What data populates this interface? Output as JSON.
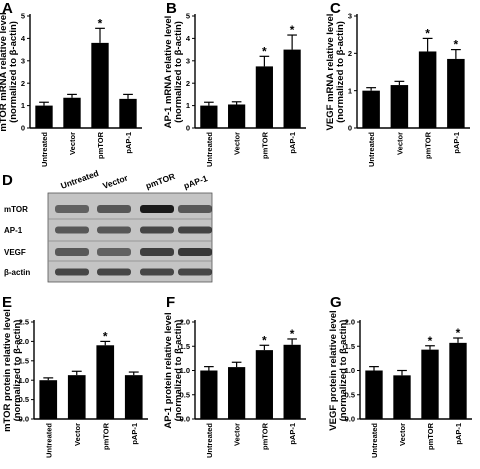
{
  "chart_data": [
    {
      "panel": "A",
      "type": "bar",
      "ylabel_line1": "mTOR mRNA relative level",
      "ylabel_line2": "(normalized to β-actin)",
      "categories": [
        "Untreated",
        "Vector",
        "pmTOR",
        "pAP-1"
      ],
      "values": [
        1.0,
        1.35,
        3.8,
        1.3
      ],
      "errors": [
        0.15,
        0.15,
        0.65,
        0.2
      ],
      "significant": [
        false,
        false,
        true,
        false
      ],
      "ylim": [
        0,
        5
      ],
      "yticks": [
        0,
        1,
        2,
        3,
        4,
        5
      ],
      "ytick_labels": [
        "0",
        "1",
        "2",
        "3",
        "4",
        "5"
      ]
    },
    {
      "panel": "B",
      "type": "bar",
      "ylabel_line1": "AP-1 mRNA relative level",
      "ylabel_line2": "(normalized to β-actin)",
      "categories": [
        "Untreated",
        "Vector",
        "pmTOR",
        "pAP-1"
      ],
      "values": [
        1.0,
        1.05,
        2.75,
        3.5
      ],
      "errors": [
        0.15,
        0.12,
        0.45,
        0.65
      ],
      "significant": [
        false,
        false,
        true,
        true
      ],
      "ylim": [
        0,
        5
      ],
      "yticks": [
        0,
        1,
        2,
        3,
        4,
        5
      ],
      "ytick_labels": [
        "0",
        "1",
        "2",
        "3",
        "4",
        "5"
      ]
    },
    {
      "panel": "C",
      "type": "bar",
      "ylabel_line1": "VEGF mRNA relative level",
      "ylabel_line2": "(normalized to β-actin)",
      "categories": [
        "Untreated",
        "Vector",
        "pmTOR",
        "pAP-1"
      ],
      "values": [
        1.0,
        1.15,
        2.05,
        1.85
      ],
      "errors": [
        0.08,
        0.1,
        0.35,
        0.25
      ],
      "significant": [
        false,
        false,
        true,
        true
      ],
      "ylim": [
        0,
        3
      ],
      "yticks": [
        0,
        1,
        2,
        3
      ],
      "ytick_labels": [
        "0",
        "1",
        "2",
        "3"
      ]
    },
    {
      "panel": "E",
      "type": "bar",
      "ylabel_line1": "mTOR protein relative level",
      "ylabel_line2": "(normalized to β-actin)",
      "categories": [
        "Untreated",
        "Vector",
        "pmTOR",
        "pAP-1"
      ],
      "values": [
        1.0,
        1.13,
        1.9,
        1.13
      ],
      "errors": [
        0.06,
        0.1,
        0.1,
        0.08
      ],
      "significant": [
        false,
        false,
        true,
        false
      ],
      "ylim": [
        0,
        2.5
      ],
      "yticks": [
        0,
        0.5,
        1.0,
        1.5,
        2.0,
        2.5
      ],
      "ytick_labels": [
        "0.0",
        "0.5",
        "1.0",
        "1.5",
        "2.0",
        "2.5"
      ]
    },
    {
      "panel": "F",
      "type": "bar",
      "ylabel_line1": "AP-1 protein relative level",
      "ylabel_line2": "(normalized to β-actin)",
      "categories": [
        "Untreated",
        "Vector",
        "pmTOR",
        "pAP-1"
      ],
      "values": [
        1.0,
        1.07,
        1.42,
        1.53
      ],
      "errors": [
        0.08,
        0.1,
        0.1,
        0.12
      ],
      "significant": [
        false,
        false,
        true,
        true
      ],
      "ylim": [
        0,
        2.0
      ],
      "yticks": [
        0,
        0.5,
        1.0,
        1.5,
        2.0
      ],
      "ytick_labels": [
        "0.0",
        "0.5",
        "1.0",
        "1.5",
        "2.0"
      ]
    },
    {
      "panel": "G",
      "type": "bar",
      "ylabel_line1": "VEGF protein relative level",
      "ylabel_line2": "(normalized to β-actin)",
      "categories": [
        "Untreated",
        "Vector",
        "pmTOR",
        "pAP-1"
      ],
      "values": [
        1.0,
        0.9,
        1.43,
        1.57
      ],
      "errors": [
        0.08,
        0.1,
        0.08,
        0.1
      ],
      "significant": [
        false,
        false,
        true,
        true
      ],
      "ylim": [
        0,
        2.0
      ],
      "yticks": [
        0,
        0.5,
        1.0,
        1.5,
        2.0
      ],
      "ytick_labels": [
        "0.0",
        "0.5",
        "1.0",
        "1.5",
        "2.0"
      ]
    }
  ],
  "blot": {
    "panel": "D",
    "columns": [
      "Untreated",
      "Vector",
      "pmTOR",
      "pAP-1"
    ],
    "rows": [
      "mTOR",
      "AP-1",
      "VEGF",
      "β-actin"
    ],
    "band_intensity": [
      [
        0.55,
        0.62,
        0.95,
        0.6
      ],
      [
        0.6,
        0.6,
        0.7,
        0.72
      ],
      [
        0.6,
        0.55,
        0.75,
        0.78
      ],
      [
        0.7,
        0.7,
        0.7,
        0.7
      ]
    ]
  },
  "significance_mark": "*",
  "colors": {
    "bar": "#000000",
    "blot_background": "#c4c4c4",
    "band": "#111111"
  }
}
